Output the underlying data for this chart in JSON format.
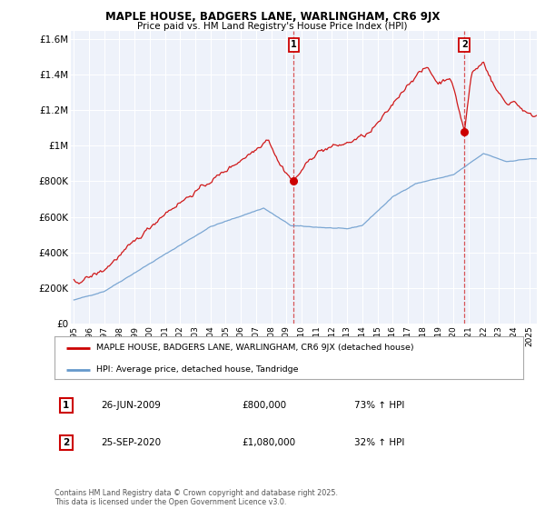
{
  "title": "MAPLE HOUSE, BADGERS LANE, WARLINGHAM, CR6 9JX",
  "subtitle": "Price paid vs. HM Land Registry's House Price Index (HPI)",
  "red_label": "MAPLE HOUSE, BADGERS LANE, WARLINGHAM, CR6 9JX (detached house)",
  "blue_label": "HPI: Average price, detached house, Tandridge",
  "annotation1": {
    "num": "1",
    "date": "26-JUN-2009",
    "price": "£800,000",
    "hpi": "73% ↑ HPI",
    "x": 2009.49
  },
  "annotation2": {
    "num": "2",
    "date": "25-SEP-2020",
    "price": "£1,080,000",
    "hpi": "32% ↑ HPI",
    "x": 2020.73
  },
  "footer": "Contains HM Land Registry data © Crown copyright and database right 2025.\nThis data is licensed under the Open Government Licence v3.0.",
  "ylim": [
    0,
    1650000
  ],
  "xlim": [
    1994.8,
    2025.5
  ],
  "yticks": [
    0,
    200000,
    400000,
    600000,
    800000,
    1000000,
    1200000,
    1400000,
    1600000
  ],
  "ytick_labels": [
    "£0",
    "£200K",
    "£400K",
    "£600K",
    "£800K",
    "£1M",
    "£1.2M",
    "£1.4M",
    "£1.6M"
  ],
  "xticks": [
    1995,
    1996,
    1997,
    1998,
    1999,
    2000,
    2001,
    2002,
    2003,
    2004,
    2005,
    2006,
    2007,
    2008,
    2009,
    2010,
    2011,
    2012,
    2013,
    2014,
    2015,
    2016,
    2017,
    2018,
    2019,
    2020,
    2021,
    2022,
    2023,
    2024,
    2025
  ],
  "vline1_x": 2009.49,
  "vline2_x": 2020.73,
  "red_color": "#cc0000",
  "blue_color": "#6699cc",
  "bg_color": "#ffffff",
  "plot_bg_color": "#eef2fa",
  "grid_color": "#ffffff",
  "sale1_price": 800000,
  "sale2_price": 1080000
}
